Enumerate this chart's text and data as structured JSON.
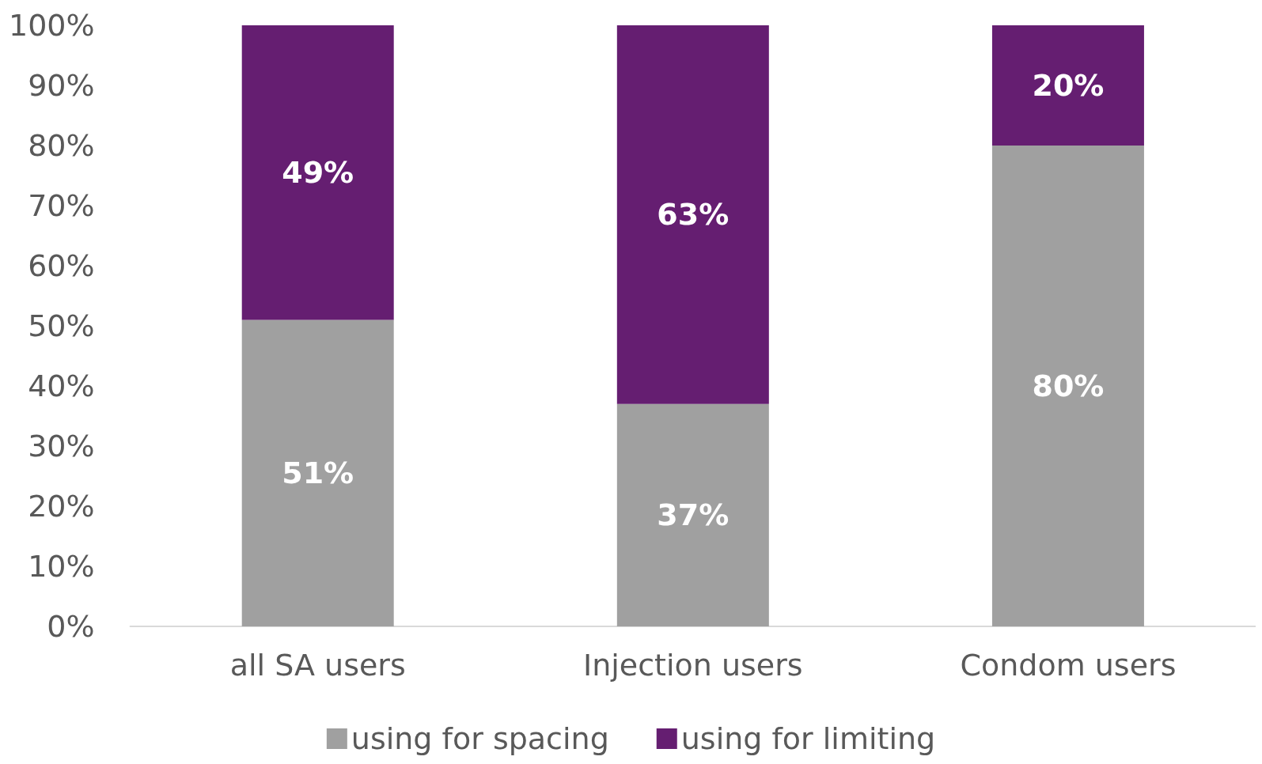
{
  "chart_data": {
    "type": "bar",
    "stacked": true,
    "categories": [
      "all SA users",
      "Injection users",
      "Condom users"
    ],
    "series": [
      {
        "name": "using for spacing",
        "color": "#a0a0a0",
        "values": [
          51,
          37,
          80
        ],
        "value_labels": [
          "51%",
          "37%",
          "80%"
        ]
      },
      {
        "name": "using for limiting",
        "color": "#651e71",
        "values": [
          49,
          63,
          20
        ],
        "value_labels": [
          "49%",
          "63%",
          "20%"
        ]
      }
    ],
    "ylim": [
      0,
      100
    ],
    "yticks": [
      {
        "value": 0,
        "label": "0%"
      },
      {
        "value": 10,
        "label": "10%"
      },
      {
        "value": 20,
        "label": "20%"
      },
      {
        "value": 30,
        "label": "30%"
      },
      {
        "value": 40,
        "label": "40%"
      },
      {
        "value": 50,
        "label": "50%"
      },
      {
        "value": 60,
        "label": "60%"
      },
      {
        "value": 70,
        "label": "70%"
      },
      {
        "value": 80,
        "label": "80%"
      },
      {
        "value": 90,
        "label": "90%"
      },
      {
        "value": 100,
        "label": "100%"
      }
    ],
    "grid": false,
    "legend": "bottom"
  }
}
